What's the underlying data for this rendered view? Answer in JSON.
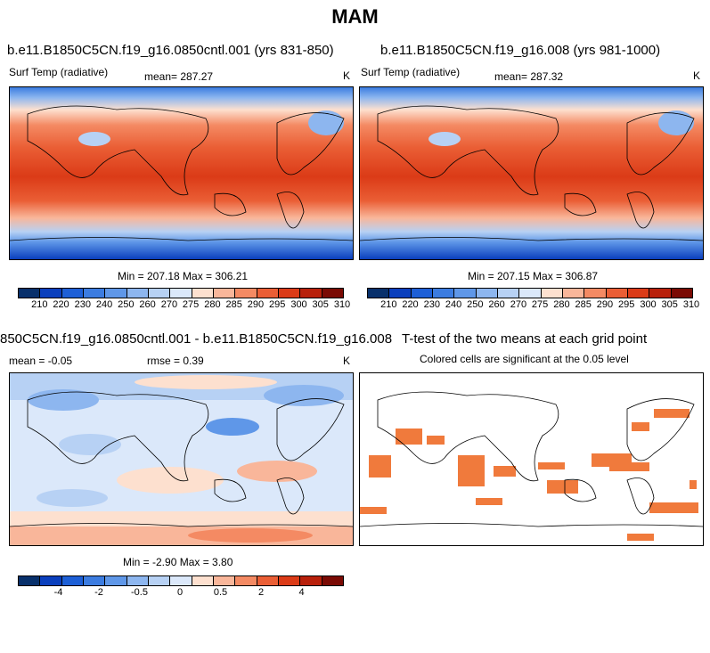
{
  "title": "MAM",
  "panels": [
    {
      "case": "b.e11.B1850C5CN.f19_g16.0850cntl.001 (yrs 831-850)",
      "variable": "Surf Temp (radiative)",
      "mean": "mean= 287.27",
      "units": "K",
      "minmax": "Min = 207.18 Max = 306.21"
    },
    {
      "case": "b.e11.B1850C5CN.f19_g16.008 (yrs 981-1000)",
      "variable": "Surf Temp (radiative)",
      "mean": "mean= 287.32",
      "units": "K",
      "minmax": "Min = 207.15 Max = 306.87"
    },
    {
      "case": "850C5CN.f19_g16.0850cntl.001 - b.e11.B1850C5CN.f19_g16.008",
      "mean": "mean =  -0.05",
      "rmse": "rmse =   0.39",
      "units": "K",
      "minmax": "Min =  -2.90 Max =   3.80"
    },
    {
      "case": "T-test of the two means at each grid point",
      "subtitle": "Colored cells are significant at the 0.05 level"
    }
  ],
  "colorbar_temp": {
    "labels": [
      "210",
      "220",
      "230",
      "240",
      "250",
      "260",
      "270",
      "275",
      "280",
      "285",
      "290",
      "295",
      "300",
      "305",
      "310"
    ]
  },
  "colorbar_diff": {
    "labels": [
      "-4",
      "-2",
      "-0.5",
      "0",
      "0.5",
      "2",
      "4"
    ]
  },
  "colors": {
    "palette": [
      "#08306b",
      "#0a3fbd",
      "#1d5fd6",
      "#3c7ce0",
      "#5f97e8",
      "#8db6ef",
      "#b7d1f4",
      "#dbe8fa",
      "#fde0cf",
      "#f9b69a",
      "#f48a63",
      "#ea5e35",
      "#db3b17",
      "#b8200b",
      "#7a0a04"
    ],
    "significant": "#f07a3c"
  }
}
